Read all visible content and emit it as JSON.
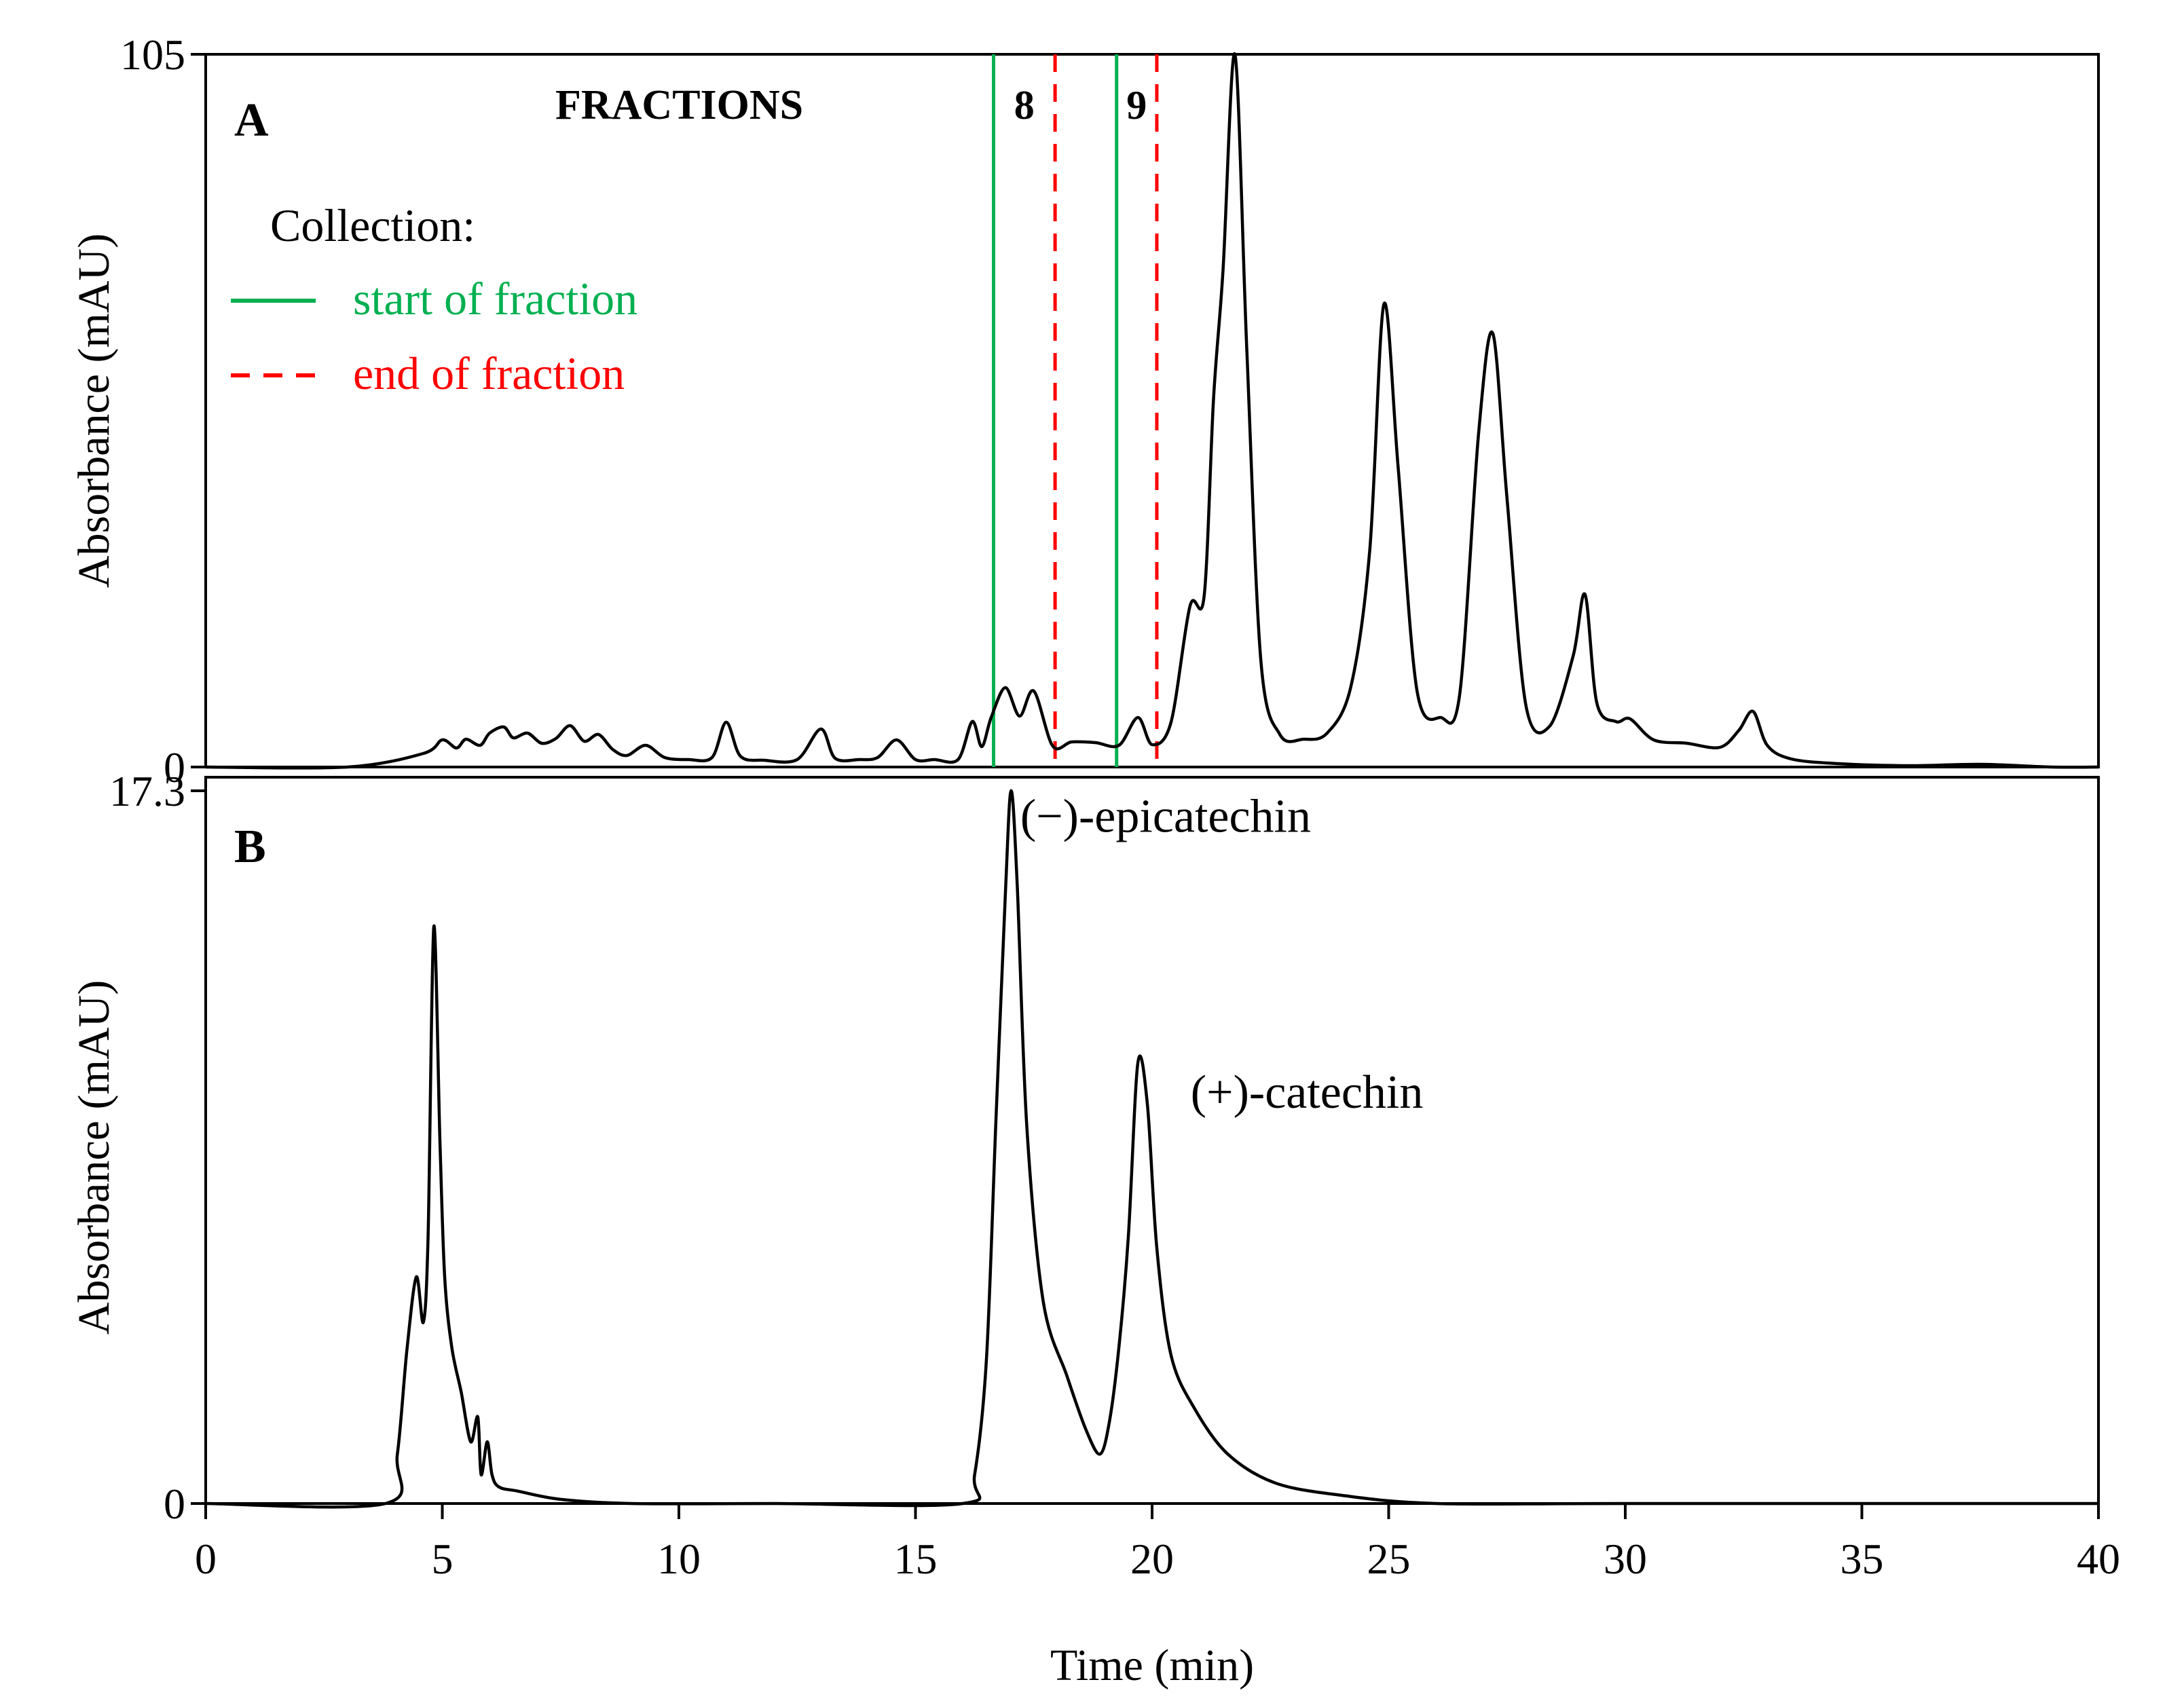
{
  "chart_data": [
    {
      "type": "line",
      "panel_label": "A",
      "ylabel": "Absorbance (mAU)",
      "xlabel": "",
      "xlim": [
        0,
        40
      ],
      "ylim": [
        0,
        105
      ],
      "y_tick_labels": [
        "0",
        "105"
      ],
      "fractions_title": "FRACTIONS",
      "fractions": [
        {
          "label": "8",
          "start": 16.65,
          "end": 17.95
        },
        {
          "label": "9",
          "start": 19.25,
          "end": 20.1
        }
      ],
      "legend": {
        "title": "Collection:",
        "entries": [
          {
            "label": "start of fraction",
            "color": "#00b050",
            "style": "solid"
          },
          {
            "label": "end of fraction",
            "color": "#ff0000",
            "style": "dashed"
          }
        ]
      },
      "series": [
        {
          "x": [
            0,
            3,
            4.6,
            5,
            5.3,
            5.5,
            5.8,
            6,
            6.3,
            6.5,
            6.8,
            7.1,
            7.4,
            7.7,
            8,
            8.3,
            8.6,
            8.9,
            9.3,
            9.7,
            10.2,
            10.7,
            11,
            11.3,
            11.8,
            12.5,
            13,
            13.3,
            13.8,
            14.2,
            14.6,
            15,
            15.4,
            15.9,
            16.2,
            16.4,
            16.6,
            16.9,
            17.2,
            17.5,
            17.9,
            18.3,
            18.8,
            19.3,
            19.7,
            20,
            20.4,
            20.8,
            21.1,
            21.3,
            21.5,
            21.75,
            22,
            22.3,
            22.7,
            23.2,
            23.7,
            24.2,
            24.6,
            24.9,
            25.2,
            25.6,
            26.1,
            26.5,
            26.9,
            27.2,
            27.5,
            27.9,
            28.4,
            28.9,
            29.15,
            29.4,
            29.8,
            30.1,
            30.6,
            31.3,
            32,
            32.4,
            32.7,
            33,
            33.5,
            34.5,
            36,
            37.5,
            39,
            40
          ],
          "values": [
            0,
            0,
            2,
            4,
            2.8,
            4.1,
            3.2,
            5,
            5.9,
            4.3,
            5,
            3.5,
            4.2,
            6.1,
            3.8,
            4.8,
            2.6,
            1.7,
            3.2,
            1.4,
            1.1,
            1.4,
            6.6,
            1.6,
            1,
            1.1,
            5.6,
            1.3,
            1.1,
            1.4,
            4,
            1.1,
            1.1,
            1.1,
            6.7,
            3,
            7.3,
            11.7,
            7.5,
            11.2,
            3.1,
            3.7,
            3.6,
            3.2,
            7.3,
            3.3,
            6.6,
            23.7,
            25.2,
            54.4,
            73.2,
            105,
            61.8,
            15.6,
            4.8,
            4.1,
            5,
            11.8,
            31.9,
            68.2,
            44.2,
            11.2,
            7.3,
            10.7,
            49.1,
            63.9,
            39.6,
            9.1,
            6,
            16.4,
            25.4,
            9.4,
            6.7,
            7.1,
            4,
            3.5,
            2.9,
            5.4,
            8.2,
            3.2,
            1.2,
            0.5,
            0.2,
            0.4,
            0,
            0
          ]
        }
      ]
    },
    {
      "type": "line",
      "panel_label": "B",
      "ylabel": "Absorbance (mAU)",
      "xlabel": "Time (min)",
      "xlim": [
        0,
        40
      ],
      "ylim": [
        0,
        17.3
      ],
      "y_tick_labels": [
        "0",
        "17.3"
      ],
      "x_ticks": [
        0,
        5,
        10,
        15,
        20,
        25,
        30,
        35,
        40
      ],
      "annotations": [
        {
          "text": "(−)-epicatechin",
          "x": 17.0,
          "y": 16.7
        },
        {
          "text": "(+)-catechin",
          "x": 20.6,
          "y": 10.0
        }
      ],
      "series": [
        {
          "x": [
            0,
            3.8,
            4.05,
            4.25,
            4.45,
            4.6,
            4.7,
            4.82,
            4.95,
            5.05,
            5.2,
            5.4,
            5.6,
            5.75,
            5.82,
            5.95,
            6.05,
            6.2,
            6.6,
            7.5,
            9,
            12,
            16,
            16.25,
            16.5,
            16.7,
            16.9,
            17.02,
            17.15,
            17.35,
            17.7,
            18.2,
            18.6,
            18.9,
            19.1,
            19.3,
            19.5,
            19.7,
            19.9,
            20.1,
            20.4,
            20.9,
            21.6,
            22.6,
            24,
            26,
            30,
            40
          ],
          "values": [
            0,
            0,
            1.2,
            3.7,
            5.5,
            4.4,
            6.5,
            14,
            8.8,
            5.5,
            3.8,
            2.7,
            1.5,
            2.1,
            0.7,
            1.5,
            0.7,
            0.4,
            0.3,
            0.1,
            0,
            0,
            0,
            0.7,
            3.5,
            9.3,
            14.8,
            17.3,
            15,
            9.2,
            4.9,
            3.1,
            1.8,
            1.2,
            2,
            3.8,
            6.5,
            10.7,
            9.7,
            6.2,
            3.6,
            2.3,
            1.2,
            0.5,
            0.2,
            0,
            0,
            0
          ]
        }
      ]
    }
  ]
}
